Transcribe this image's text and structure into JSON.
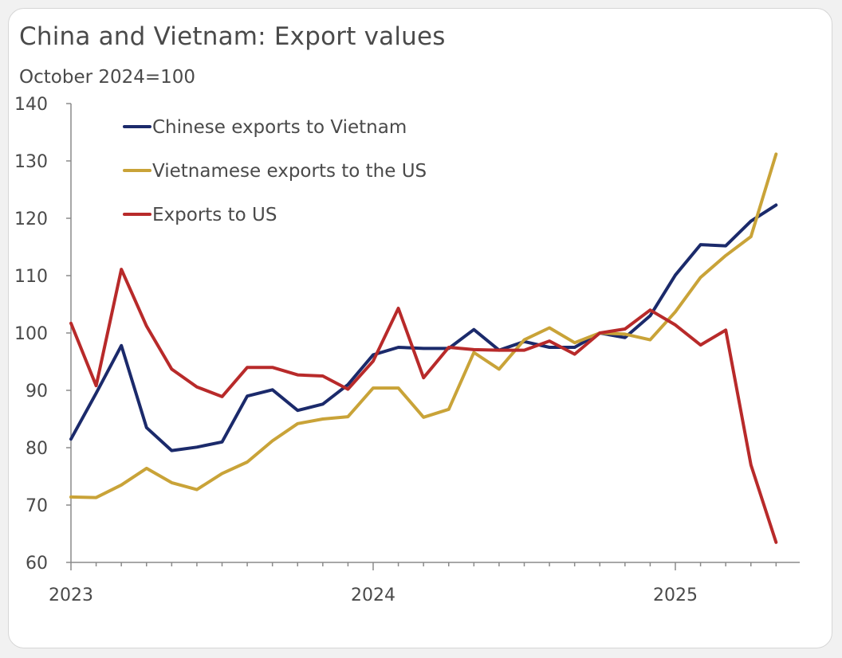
{
  "chart_data": {
    "type": "line",
    "title": "China and Vietnam: Export values",
    "subtitle": "October 2024=100",
    "xlabel": "",
    "ylabel": "",
    "ylim": [
      60,
      140
    ],
    "yticks": [
      "140",
      "130",
      "120",
      "110",
      "100",
      "90",
      "80",
      "70",
      "60"
    ],
    "xticks": [
      "2023",
      "2024",
      "2025"
    ],
    "x_months": [
      "2023-01",
      "2023-02",
      "2023-03",
      "2023-04",
      "2023-05",
      "2023-06",
      "2023-07",
      "2023-08",
      "2023-09",
      "2023-10",
      "2023-11",
      "2023-12",
      "2024-01",
      "2024-02",
      "2024-03",
      "2024-04",
      "2024-05",
      "2024-06",
      "2024-07",
      "2024-08",
      "2024-09",
      "2024-10",
      "2024-11",
      "2024-12",
      "2025-01",
      "2025-02",
      "2025-03",
      "2025-04",
      "2025-05"
    ],
    "legend_position": "top-left",
    "grid": false,
    "series": [
      {
        "name": "Chinese exports to Vietnam",
        "color": "#1b2a6b",
        "values": [
          81.5,
          89.5,
          97.8,
          83.5,
          79.5,
          80.1,
          81.0,
          89.0,
          90.1,
          86.5,
          87.6,
          91.0,
          96.2,
          97.5,
          97.3,
          97.3,
          100.6,
          97.0,
          98.5,
          97.5,
          97.5,
          100.0,
          99.2,
          103.0,
          110.1,
          115.4,
          115.2,
          119.5,
          122.3
        ]
      },
      {
        "name": "Vietnamese exports to the US",
        "color": "#c9a338",
        "values": [
          71.4,
          71.3,
          73.5,
          76.4,
          73.9,
          72.7,
          75.5,
          77.5,
          81.2,
          84.2,
          85.0,
          85.4,
          90.4,
          90.4,
          85.3,
          86.7,
          96.6,
          93.7,
          98.8,
          100.9,
          98.3,
          100.0,
          99.8,
          98.8,
          103.7,
          109.7,
          113.5,
          116.8,
          131.2
        ]
      },
      {
        "name": "Exports to US",
        "color": "#b82a2a",
        "values": [
          101.7,
          90.8,
          111.1,
          101.2,
          93.7,
          90.6,
          88.9,
          94.0,
          94.0,
          92.7,
          92.5,
          90.2,
          95.1,
          104.3,
          92.2,
          97.5,
          97.1,
          97.0,
          97.0,
          98.6,
          96.3,
          100.0,
          100.7,
          104.0,
          101.4,
          97.9,
          100.5,
          77.0,
          63.5
        ]
      }
    ]
  }
}
